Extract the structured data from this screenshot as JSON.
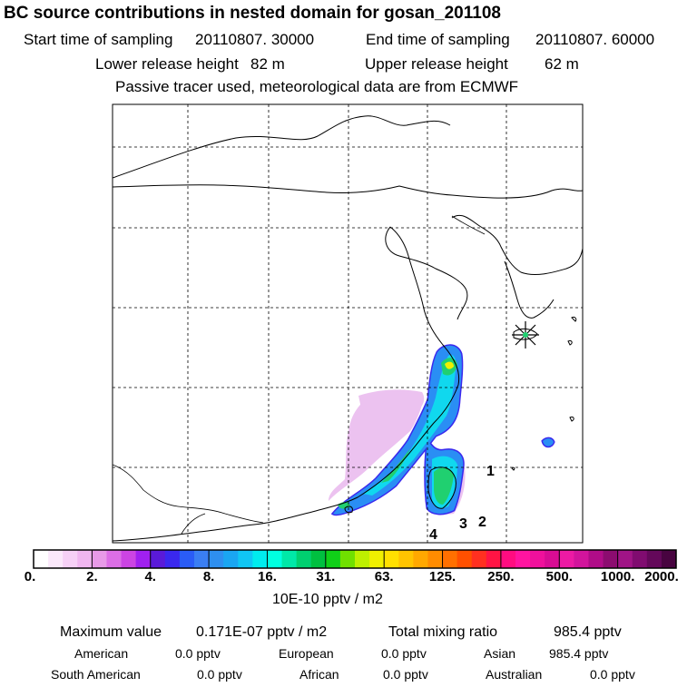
{
  "title": "BC  source contributions in nested domain for gosan_201108",
  "header": {
    "start_label": "Start time of sampling",
    "start_value": "20110807. 30000",
    "end_label": "End time of sampling",
    "end_value": "20110807. 60000",
    "lower_label": "Lower release height",
    "lower_value": "82 m",
    "upper_label": "Upper release height",
    "upper_value": "62 m",
    "tracer_note": "Passive tracer used, meteorological data are from ECMWF"
  },
  "map": {
    "receptor_marker": "receptor-star-icon",
    "region_labels": [
      "1",
      "2",
      "3",
      "4"
    ]
  },
  "chart_data": {
    "type": "heatmap",
    "title": "BC  source contributions in nested domain for gosan_201108",
    "colorbar": {
      "levels": [
        "0.",
        "2.",
        "4.",
        "8.",
        "16.",
        "31.",
        "63.",
        "125.",
        "250.",
        "500.",
        "1000.",
        "2000."
      ],
      "values": [
        0,
        2,
        4,
        8,
        16,
        31,
        63,
        125,
        250,
        500,
        1000,
        2000
      ],
      "colors": [
        [
          "#ffffff",
          "#fbe8fb",
          "#f6d0f6",
          "#f0b6f0"
        ],
        [
          "#e89ae8",
          "#dc6ee6",
          "#cc44e4",
          "#a020f0"
        ],
        [
          "#5a1ad8",
          "#3a28ee",
          "#2a5cf6",
          "#3a7ef2"
        ],
        [
          "#2e8ff0",
          "#1aa6f2",
          "#10c6f4",
          "#00ecee"
        ],
        [
          "#00ffe0",
          "#00e8a8",
          "#00d070",
          "#00c040"
        ],
        [
          "#10d018",
          "#70e000",
          "#bef000",
          "#f0f000"
        ],
        [
          "#ffe000",
          "#ffc400",
          "#ffa800",
          "#ff8c00"
        ],
        [
          "#ff7000",
          "#ff5000",
          "#ff3020",
          "#ff1444"
        ],
        [
          "#ff0c80",
          "#ff14a0",
          "#f0109c",
          "#d80c94"
        ],
        [
          "#ec1aa4",
          "#d2149c",
          "#b00c88",
          "#8c0c70"
        ],
        [
          "#a01486",
          "#800c70",
          "#64085a",
          "#480440"
        ]
      ],
      "units": "10E-10 pptv / m2"
    }
  },
  "stats": {
    "max_label": "Maximum value",
    "max_value": "0.171E-07 pptv / m2",
    "total_label": "Total mixing ratio",
    "total_value": "985.4 pptv"
  },
  "sources": [
    {
      "name": "American",
      "value": "0.0 pptv"
    },
    {
      "name": "European",
      "value": "0.0 pptv"
    },
    {
      "name": "Asian",
      "value": "985.4 pptv"
    },
    {
      "name": "South American",
      "value": "0.0 pptv"
    },
    {
      "name": "African",
      "value": "0.0 pptv"
    },
    {
      "name": "Australian",
      "value": "0.0 pptv"
    }
  ]
}
